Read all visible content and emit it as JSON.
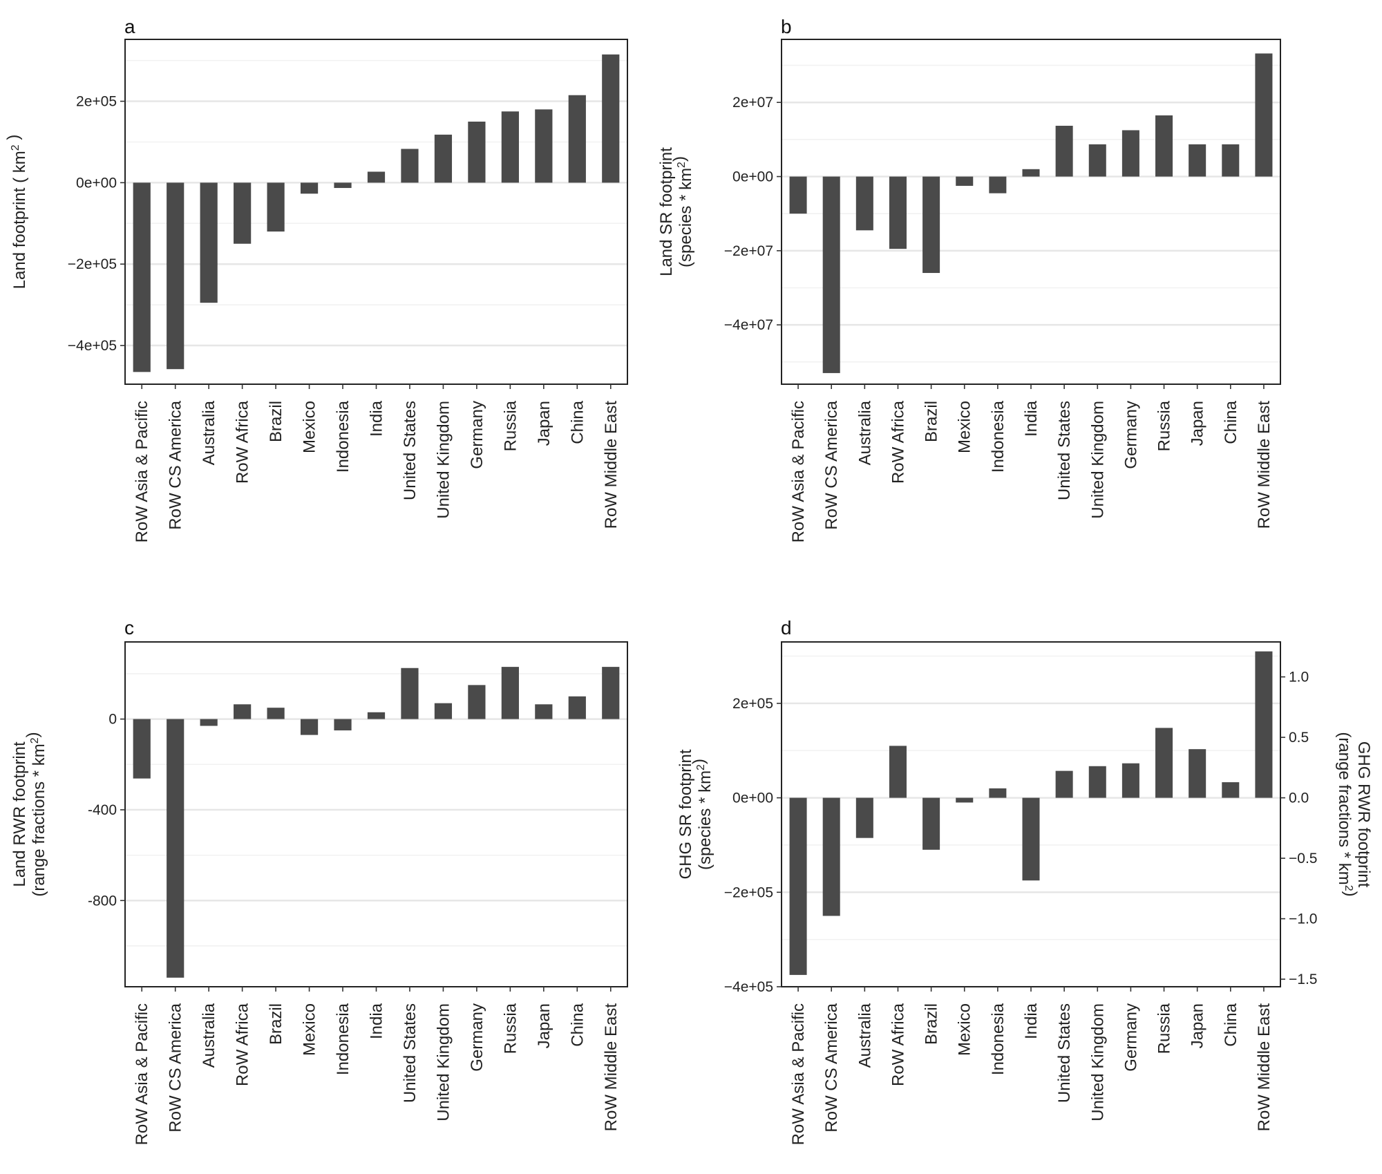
{
  "categories": [
    "RoW Asia & Pacific",
    "RoW CS America",
    "Australia",
    "RoW Africa",
    "Brazil",
    "Mexico",
    "Indonesia",
    "India",
    "United States",
    "United Kingdom",
    "Germany",
    "Russia",
    "Japan",
    "China",
    "RoW Middle East"
  ],
  "colors": {
    "bar": "#4a4a4a",
    "frame": "#222222",
    "grid_major": "#e6e6e6",
    "grid_minor": "#f1f1f1"
  },
  "chart_data": [
    {
      "letter": "a",
      "type": "bar",
      "categories_ref": "categories",
      "values": [
        -465000,
        -458000,
        -295000,
        -150000,
        -120000,
        -27000,
        -13000,
        27000,
        83000,
        118000,
        150000,
        175000,
        180000,
        215000,
        315000
      ],
      "ylim": [
        -495000,
        352000
      ],
      "yticks": [
        {
          "v": 200000,
          "label": "2e+05"
        },
        {
          "v": 0,
          "label": "0e+00"
        },
        {
          "v": -200000,
          "label": "−2e+05"
        },
        {
          "v": -400000,
          "label": "−4e+05"
        }
      ],
      "minor": [
        300000,
        100000,
        -100000,
        -300000
      ],
      "ylabel_lines": [
        {
          "parts": [
            {
              "t": "Land footprint ( km"
            },
            {
              "t": "2",
              "sup": true
            },
            {
              "t": " )"
            }
          ]
        }
      ]
    },
    {
      "letter": "b",
      "type": "bar",
      "categories_ref": "categories",
      "values": [
        -10000000,
        -53000000,
        -14500000,
        -19500000,
        -26000000,
        -2500000,
        -4500000,
        2000000,
        13700000,
        8700000,
        12500000,
        16500000,
        8700000,
        8700000,
        33200000
      ],
      "ylim": [
        -56000000,
        37000000
      ],
      "yticks": [
        {
          "v": 20000000,
          "label": "2e+07"
        },
        {
          "v": 0,
          "label": "0e+00"
        },
        {
          "v": -20000000,
          "label": "−2e+07"
        },
        {
          "v": -40000000,
          "label": "−4e+07"
        }
      ],
      "minor": [
        30000000,
        10000000,
        -10000000,
        -30000000,
        -50000000
      ],
      "ylabel_lines": [
        {
          "parts": [
            {
              "t": "Land SR footprint"
            }
          ]
        },
        {
          "parts": [
            {
              "t": "(species * km"
            },
            {
              "t": "2",
              "sup": true
            },
            {
              "t": ")"
            }
          ]
        }
      ]
    },
    {
      "letter": "c",
      "type": "bar",
      "categories_ref": "categories",
      "values": [
        -262,
        -1140,
        -30,
        65,
        50,
        -70,
        -50,
        30,
        225,
        70,
        150,
        230,
        65,
        100,
        230
      ],
      "ylim": [
        -1180,
        340
      ],
      "yticks": [
        {
          "v": 0,
          "label": "0"
        },
        {
          "v": -400,
          "label": "-400"
        },
        {
          "v": -800,
          "label": "-800"
        }
      ],
      "minor": [
        200,
        -200,
        -600,
        -1000
      ],
      "ylabel_lines": [
        {
          "parts": [
            {
              "t": "Land RWR footprint"
            }
          ]
        },
        {
          "parts": [
            {
              "t": "(range fractions * km"
            },
            {
              "t": "2",
              "sup": true
            },
            {
              "t": ")"
            }
          ]
        }
      ]
    },
    {
      "letter": "d",
      "type": "bar",
      "categories_ref": "categories",
      "values": [
        -375000,
        -250000,
        -85000,
        110000,
        -110000,
        -10000,
        20000,
        -175000,
        57000,
        67000,
        73000,
        148000,
        103000,
        33000,
        310000
      ],
      "ylim": [
        -400000,
        330000
      ],
      "yticks": [
        {
          "v": 200000,
          "label": "2e+05"
        },
        {
          "v": 0,
          "label": "0e+00"
        },
        {
          "v": -200000,
          "label": "−2e+05"
        },
        {
          "v": -400000,
          "label": "−4e+05"
        }
      ],
      "minor": [
        300000,
        100000,
        -100000,
        -300000
      ],
      "ylabel_lines": [
        {
          "parts": [
            {
              "t": "GHG SR footprint"
            }
          ]
        },
        {
          "parts": [
            {
              "t": "(species * km"
            },
            {
              "t": "2",
              "sup": true
            },
            {
              "t": ")"
            }
          ]
        }
      ],
      "secondary_axis": {
        "per_unit": 256000,
        "yticks": [
          {
            "v": 1.0,
            "label": "1.0"
          },
          {
            "v": 0.5,
            "label": "0.5"
          },
          {
            "v": 0.0,
            "label": "0.0"
          },
          {
            "v": -0.5,
            "label": "−0.5"
          },
          {
            "v": -1.0,
            "label": "−1.0"
          },
          {
            "v": -1.5,
            "label": "−1.5"
          }
        ],
        "ylabel_lines": [
          {
            "parts": [
              {
                "t": "GHG RWR footprint"
              }
            ]
          },
          {
            "parts": [
              {
                "t": "(range fractions * km"
              },
              {
                "t": "2",
                "sup": true
              },
              {
                "t": ")"
              }
            ]
          }
        ]
      }
    }
  ]
}
